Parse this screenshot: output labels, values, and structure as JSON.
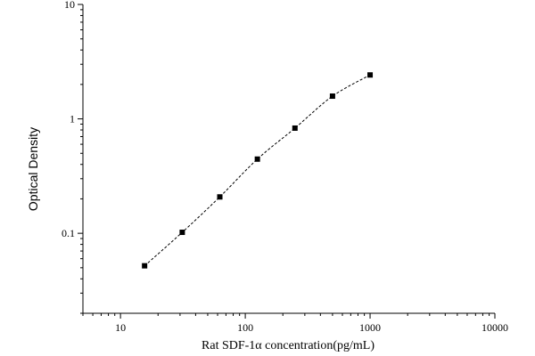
{
  "chart_data": {
    "type": "scatter",
    "title": "",
    "xlabel": "Rat SDF-1α  concentration(pg/mL)",
    "ylabel": "Optical Density",
    "xscale": "log",
    "yscale": "log",
    "xlim": [
      5,
      10000
    ],
    "ylim": [
      0.02,
      10
    ],
    "x_tick_labels": [
      "10",
      "100",
      "1000",
      "10000"
    ],
    "x_tick_values": [
      10,
      100,
      1000,
      10000
    ],
    "y_tick_labels": [
      "0.1",
      "1",
      "10"
    ],
    "y_tick_values": [
      0.1,
      1,
      10
    ],
    "grid": false,
    "legend": "none",
    "marker_color": "#000000",
    "series": [
      {
        "x": [
          15.6,
          31.25,
          62.5,
          125,
          250,
          500,
          1000
        ],
        "y": [
          0.052,
          0.102,
          0.208,
          0.445,
          0.83,
          1.58,
          2.42
        ]
      }
    ],
    "fit_curve": "dashed"
  }
}
